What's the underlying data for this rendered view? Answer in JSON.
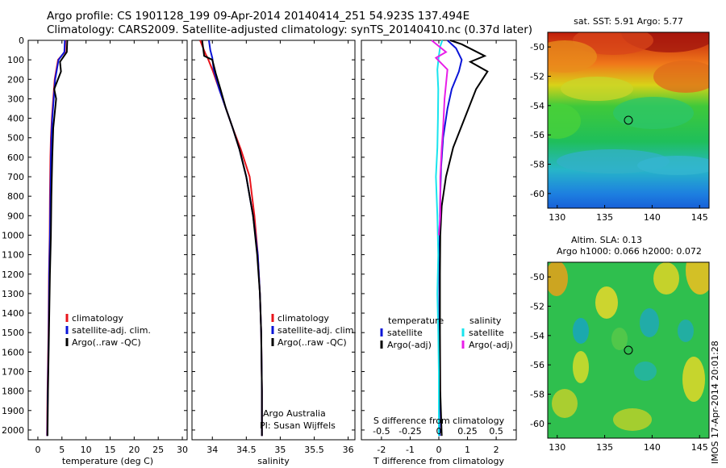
{
  "header": {
    "line1": "Argo profile: CS 1901128_199 09-Apr-2014 20140414_251 54.923S 137.494E",
    "line2": "Climatology: CARS2009. Satellite-adjusted climatology: synTS_20140410.nc (0.37d later)"
  },
  "side_stamp": "IMOS 17-Apr-2014 20:01:28",
  "colors": {
    "climatology": "#e8141b",
    "satellite": "#0a14d8",
    "argo": "#000000",
    "sal_satellite": "#19e4ee",
    "sal_argo": "#e81ee8"
  },
  "chart_data": [
    {
      "id": "temperature",
      "type": "line",
      "xlabel": "temperature (deg C)",
      "ylabel": "",
      "xlim": [
        -2,
        31
      ],
      "ylim": [
        2050,
        0
      ],
      "xticks": [
        0,
        5,
        10,
        15,
        20,
        25,
        30
      ],
      "yticks": [
        0,
        100,
        200,
        300,
        400,
        500,
        600,
        700,
        800,
        900,
        1000,
        1100,
        1200,
        1300,
        1400,
        1500,
        1600,
        1700,
        1800,
        1900,
        2000
      ],
      "legend": [
        "climatology",
        "satellite-adj. clim.",
        "Argo(..raw -QC)"
      ],
      "series": [
        {
          "name": "climatology",
          "color": "#e8141b",
          "x": [
            5.7,
            5.6,
            4.2,
            3.5,
            3.2,
            2.9,
            2.7,
            2.6,
            2.5,
            2.45,
            2.3,
            2.2,
            2.0,
            1.9
          ],
          "y": [
            0,
            60,
            100,
            200,
            300,
            400,
            500,
            600,
            800,
            1000,
            1200,
            1500,
            1800,
            2030
          ]
        },
        {
          "name": "satellite-adj. clim.",
          "color": "#0a14d8",
          "x": [
            5.6,
            5.5,
            4.3,
            3.6,
            3.3,
            3.0,
            2.8,
            2.7,
            2.6,
            2.5,
            2.35,
            2.25,
            2.05,
            1.95
          ],
          "y": [
            0,
            60,
            100,
            200,
            300,
            400,
            500,
            600,
            800,
            1000,
            1200,
            1500,
            1800,
            2030
          ]
        },
        {
          "name": "Argo(..raw -QC)",
          "color": "#000000",
          "x": [
            6.1,
            6.0,
            4.6,
            4.8,
            3.4,
            3.8,
            3.2,
            3.0,
            2.8,
            2.7,
            2.5,
            2.3,
            2.1,
            2.0
          ],
          "y": [
            0,
            60,
            110,
            160,
            250,
            300,
            450,
            600,
            800,
            1000,
            1200,
            1500,
            1800,
            2030
          ]
        }
      ]
    },
    {
      "id": "salinity",
      "type": "line",
      "xlabel": "salinity",
      "xlim": [
        33.7,
        36.1
      ],
      "ylim": [
        2050,
        0
      ],
      "xticks": [
        34,
        34.5,
        35,
        35.5,
        36
      ],
      "legend": [
        "climatology",
        "satellite-adj. clim.",
        "Argo(..raw -QC)"
      ],
      "annotation": [
        "Argo Australia",
        "PI: Susan Wijffels"
      ],
      "series": [
        {
          "name": "climatology",
          "color": "#e8141b",
          "x": [
            33.82,
            33.9,
            33.93,
            34.0,
            34.1,
            34.2,
            34.3,
            34.42,
            34.55,
            34.62,
            34.67,
            34.7,
            34.72,
            34.73,
            34.73
          ],
          "y": [
            0,
            70,
            90,
            150,
            250,
            350,
            450,
            560,
            700,
            900,
            1100,
            1300,
            1500,
            1800,
            2030
          ]
        },
        {
          "name": "satellite-adj. clim.",
          "color": "#0a14d8",
          "x": [
            33.95,
            33.97,
            34.0,
            34.02,
            34.1,
            34.2,
            34.3,
            34.4,
            34.5,
            34.6,
            34.67,
            34.7,
            34.72,
            34.73,
            34.73
          ],
          "y": [
            0,
            50,
            90,
            150,
            250,
            350,
            450,
            560,
            700,
            900,
            1100,
            1300,
            1500,
            1800,
            2030
          ]
        },
        {
          "name": "Argo(..raw -QC)",
          "color": "#000000",
          "x": [
            33.85,
            33.88,
            34.0,
            34.05,
            34.12,
            34.2,
            34.3,
            34.4,
            34.5,
            34.6,
            34.66,
            34.7,
            34.72,
            34.73,
            34.73
          ],
          "y": [
            0,
            80,
            100,
            170,
            250,
            350,
            450,
            560,
            700,
            900,
            1100,
            1300,
            1500,
            1800,
            2030
          ]
        }
      ]
    },
    {
      "id": "difference",
      "type": "line",
      "xlabel": "T difference from climatology",
      "xlabel_top": "S difference from climatology",
      "xlim": [
        -2.7,
        2.7
      ],
      "ylim": [
        2050,
        0
      ],
      "xticks": [
        -2,
        -1,
        0,
        1,
        2
      ],
      "xticks_top": [
        -0.5,
        -0.25,
        0,
        0.25,
        0.5
      ],
      "legend_left": {
        "title": "temperature",
        "items": [
          "satellite",
          "Argo(-adj)"
        ]
      },
      "legend_right": {
        "title": "salinity",
        "items": [
          "satellite",
          "Argo(-adj)"
        ]
      },
      "series": [
        {
          "name": "temperature satellite",
          "color": "#0a14d8",
          "x": [
            0.3,
            0.6,
            0.8,
            0.7,
            0.45,
            0.3,
            0.15,
            0.08,
            0.05,
            0.03,
            0.02,
            0.02,
            0.02,
            0.02,
            0.03
          ],
          "y": [
            0,
            40,
            100,
            160,
            250,
            350,
            500,
            650,
            800,
            1000,
            1200,
            1500,
            1800,
            1950,
            2030
          ]
        },
        {
          "name": "temperature Argo(-adj)",
          "color": "#000000",
          "x": [
            0.4,
            0.8,
            1.6,
            1.1,
            1.7,
            1.3,
            0.9,
            0.5,
            0.25,
            0.1,
            0.05,
            0.04,
            0.04,
            0.05,
            0.1
          ],
          "y": [
            0,
            20,
            80,
            110,
            160,
            250,
            400,
            550,
            700,
            850,
            1000,
            1200,
            1500,
            1800,
            2030
          ]
        },
        {
          "name": "salinity satellite",
          "color": "#19e4ee",
          "x": [
            0.12,
            0.05,
            0.0,
            -0.05,
            -0.02,
            -0.03,
            -0.05,
            -0.1,
            -0.05,
            -0.02,
            -0.05,
            -0.02,
            0.0,
            0.0,
            0.0
          ],
          "y": [
            0,
            30,
            80,
            150,
            250,
            400,
            550,
            700,
            900,
            1100,
            1300,
            1500,
            1700,
            1900,
            2030
          ]
        },
        {
          "name": "salinity Argo(-adj)",
          "color": "#e81ee8",
          "x": [
            -0.25,
            0.25,
            -0.1,
            0.3,
            0.2,
            0.15,
            0.1,
            0.05,
            0.05,
            0.0
          ],
          "y": [
            0,
            60,
            90,
            150,
            300,
            450,
            550,
            700,
            900,
            1000
          ]
        }
      ]
    },
    {
      "id": "sst-map",
      "type": "heatmap",
      "title": "sat. SST: 5.91  Argo: 5.77",
      "xlim": [
        129,
        146
      ],
      "ylim": [
        -61,
        -49
      ],
      "xticks": [
        130,
        135,
        140,
        145
      ],
      "yticks": [
        -50,
        -52,
        -54,
        -56,
        -58,
        -60
      ],
      "marker": {
        "lon": 137.5,
        "lat": -55
      }
    },
    {
      "id": "sla-map",
      "type": "heatmap",
      "title": [
        "Altim. SLA: 0.13",
        "Argo h1000: 0.066 h2000: 0.072"
      ],
      "xlim": [
        129,
        146
      ],
      "ylim": [
        -61,
        -49
      ],
      "xticks": [
        130,
        135,
        140,
        145
      ],
      "yticks": [
        -50,
        -52,
        -54,
        -56,
        -58,
        -60
      ],
      "marker": {
        "lon": 137.5,
        "lat": -55
      }
    }
  ]
}
